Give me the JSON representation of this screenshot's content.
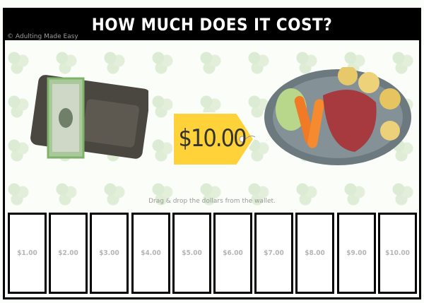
{
  "header": {
    "title": "HOW MUCH DOES IT COST?"
  },
  "copyright": "© Adulting Made Easy",
  "price_tag": {
    "price": "$10.00"
  },
  "instruction": "Drag & drop the dollars from the wallet.",
  "slots": [
    {
      "label": "$1.00"
    },
    {
      "label": "$2.00"
    },
    {
      "label": "$3.00"
    },
    {
      "label": "$4.00"
    },
    {
      "label": "$5.00"
    },
    {
      "label": "$6.00"
    },
    {
      "label": "$7.00"
    },
    {
      "label": "$8.00"
    },
    {
      "label": "$9.00"
    },
    {
      "label": "$10.00"
    }
  ],
  "colors": {
    "frame": "#000000",
    "tag": "#ffd23a",
    "slot_text": "#b5b5b5"
  }
}
